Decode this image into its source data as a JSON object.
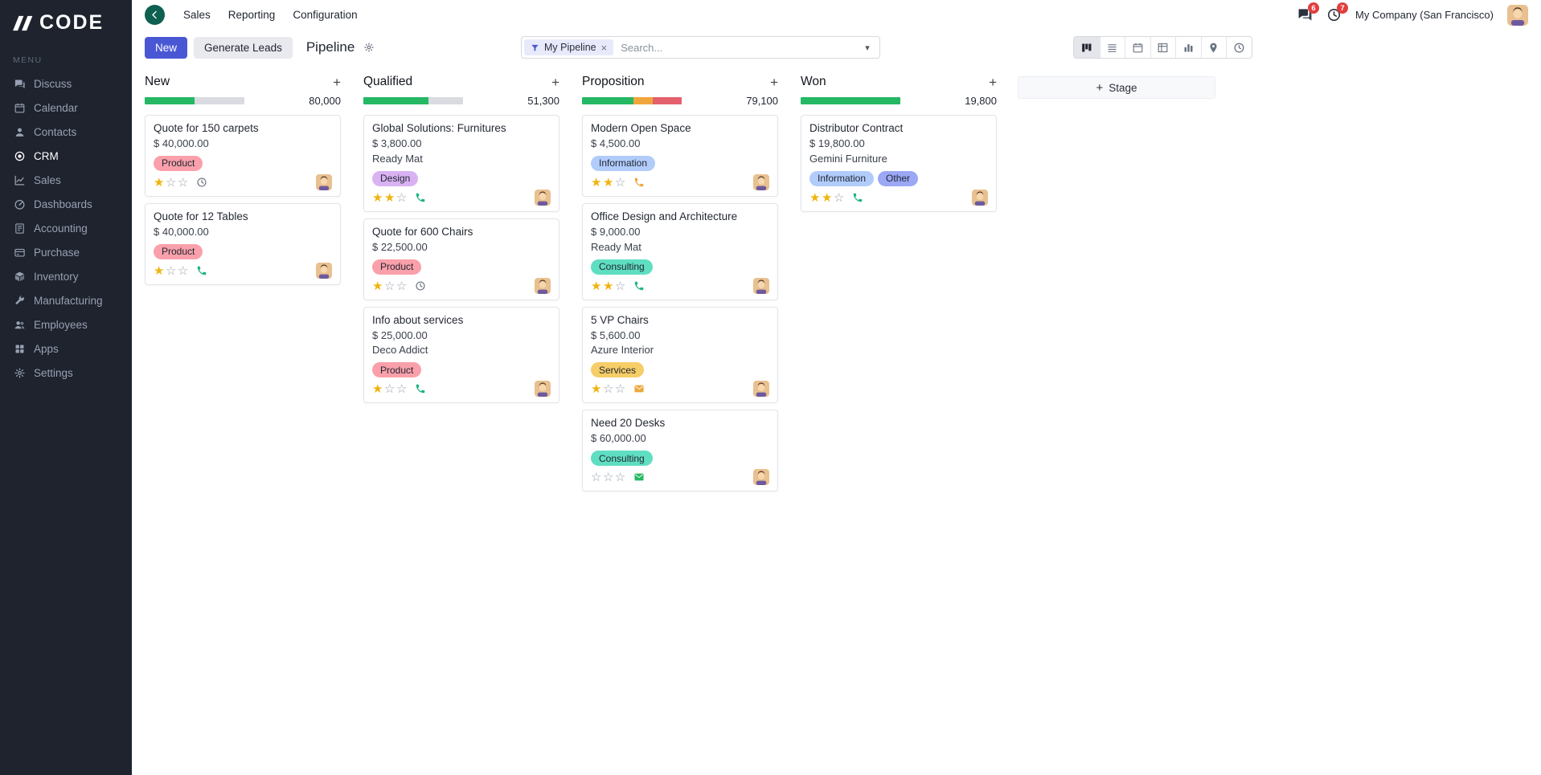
{
  "colors": {
    "accent": "#4a57d5",
    "progress_green": "#25b864",
    "progress_orange": "#f0a63c",
    "progress_red": "#e4606d",
    "progress_track": "#d9dbe0"
  },
  "icons": {
    "plus": "+",
    "close": "×",
    "caret": "▾",
    "star_filled": "★",
    "star_empty": "☆"
  },
  "sidebar": {
    "logo_text": "CODE",
    "menu_label": "MENU",
    "items": [
      {
        "label": "Discuss",
        "icon": "discuss",
        "active": false
      },
      {
        "label": "Calendar",
        "icon": "calendar",
        "active": false
      },
      {
        "label": "Contacts",
        "icon": "contacts",
        "active": false
      },
      {
        "label": "CRM",
        "icon": "crm",
        "active": true
      },
      {
        "label": "Sales",
        "icon": "sales",
        "active": false
      },
      {
        "label": "Dashboards",
        "icon": "dashboards",
        "active": false
      },
      {
        "label": "Accounting",
        "icon": "accounting",
        "active": false
      },
      {
        "label": "Purchase",
        "icon": "purchase",
        "active": false
      },
      {
        "label": "Inventory",
        "icon": "inventory",
        "active": false
      },
      {
        "label": "Manufacturing",
        "icon": "manufacturing",
        "active": false
      },
      {
        "label": "Employees",
        "icon": "employees",
        "active": false
      },
      {
        "label": "Apps",
        "icon": "apps",
        "active": false
      },
      {
        "label": "Settings",
        "icon": "settings",
        "active": false
      }
    ]
  },
  "topbar": {
    "nav": [
      {
        "label": "Sales"
      },
      {
        "label": "Reporting"
      },
      {
        "label": "Configuration"
      }
    ],
    "messages_badge": "6",
    "activities_badge": "7",
    "company_name": "My Company (San Francisco)"
  },
  "controls": {
    "new_button": "New",
    "generate_leads_button": "Generate Leads",
    "title": "Pipeline",
    "filter_chip": "My Pipeline",
    "search_placeholder": "Search...",
    "add_stage_button": "Stage",
    "view_switcher": [
      {
        "name": "kanban",
        "icon": "kanban",
        "active": true
      },
      {
        "name": "list",
        "icon": "list",
        "active": false
      },
      {
        "name": "calendar",
        "icon": "calendar",
        "active": false
      },
      {
        "name": "pivot",
        "icon": "pivot",
        "active": false
      },
      {
        "name": "graph",
        "icon": "graph",
        "active": false
      },
      {
        "name": "map",
        "icon": "map",
        "active": false
      },
      {
        "name": "activity",
        "icon": "clock",
        "active": false
      }
    ]
  },
  "board": {
    "columns": [
      {
        "name": "New",
        "total": "80,000",
        "progress": [
          {
            "color": "#25b864",
            "pct": 50
          },
          {
            "color": "#d9dbe0",
            "pct": 50
          }
        ],
        "cards": [
          {
            "title": "Quote for 150 carpets",
            "amount": "$ 40,000.00",
            "tags": [
              {
                "label": "Product",
                "bg": "#f9a0aa"
              }
            ],
            "stars": 1,
            "activity": {
              "type": "clock",
              "color": "#6a7280"
            }
          },
          {
            "title": "Quote for 12 Tables",
            "amount": "$ 40,000.00",
            "tags": [
              {
                "label": "Product",
                "bg": "#f9a0aa"
              }
            ],
            "stars": 1,
            "activity": {
              "type": "phone",
              "color": "#1eb482"
            }
          }
        ]
      },
      {
        "name": "Qualified",
        "total": "51,300",
        "progress": [
          {
            "color": "#25b864",
            "pct": 65
          },
          {
            "color": "#d9dbe0",
            "pct": 35
          }
        ],
        "cards": [
          {
            "title": "Global Solutions: Furnitures",
            "amount": "$ 3,800.00",
            "partner": "Ready Mat",
            "tags": [
              {
                "label": "Design",
                "bg": "#d9b2f2"
              }
            ],
            "stars": 2,
            "activity": {
              "type": "phone",
              "color": "#1eb482"
            }
          },
          {
            "title": "Quote for 600 Chairs",
            "amount": "$ 22,500.00",
            "tags": [
              {
                "label": "Product",
                "bg": "#f9a0aa"
              }
            ],
            "stars": 1,
            "activity": {
              "type": "clock",
              "color": "#6a7280"
            }
          },
          {
            "title": "Info about services",
            "amount": "$ 25,000.00",
            "partner": "Deco Addict",
            "tags": [
              {
                "label": "Product",
                "bg": "#f9a0aa"
              }
            ],
            "stars": 1,
            "activity": {
              "type": "phone",
              "color": "#1eb482"
            }
          }
        ]
      },
      {
        "name": "Proposition",
        "total": "79,100",
        "progress": [
          {
            "color": "#25b864",
            "pct": 52
          },
          {
            "color": "#f0a63c",
            "pct": 19
          },
          {
            "color": "#e4606d",
            "pct": 29
          }
        ],
        "cards": [
          {
            "title": "Modern Open Space",
            "amount": "$ 4,500.00",
            "tags": [
              {
                "label": "Information",
                "bg": "#b1ccfb"
              }
            ],
            "stars": 2,
            "activity": {
              "type": "phone",
              "color": "#f0a63c"
            }
          },
          {
            "title": "Office Design and Architecture",
            "amount": "$ 9,000.00",
            "partner": "Ready Mat",
            "tags": [
              {
                "label": "Consulting",
                "bg": "#5fdec2"
              }
            ],
            "stars": 2,
            "activity": {
              "type": "phone",
              "color": "#1eb482"
            }
          },
          {
            "title": "5 VP Chairs",
            "amount": "$ 5,600.00",
            "partner": "Azure Interior",
            "tags": [
              {
                "label": "Services",
                "bg": "#f6cd67"
              }
            ],
            "stars": 1,
            "activity": {
              "type": "envelope",
              "color": "#eda73a"
            }
          },
          {
            "title": "Need 20 Desks",
            "amount": "$ 60,000.00",
            "tags": [
              {
                "label": "Consulting",
                "bg": "#5fdec2"
              }
            ],
            "stars": 0,
            "activity": {
              "type": "envelope",
              "color": "#25b864"
            }
          }
        ]
      },
      {
        "name": "Won",
        "total": "19,800",
        "progress": [
          {
            "color": "#25b864",
            "pct": 100
          }
        ],
        "cards": [
          {
            "title": "Distributor Contract",
            "amount": "$ 19,800.00",
            "partner": "Gemini Furniture",
            "tags": [
              {
                "label": "Information",
                "bg": "#b1ccfb"
              },
              {
                "label": "Other",
                "bg": "#9ba8f5"
              }
            ],
            "stars": 2,
            "activity": {
              "type": "phone",
              "color": "#1eb482"
            }
          }
        ]
      }
    ]
  }
}
